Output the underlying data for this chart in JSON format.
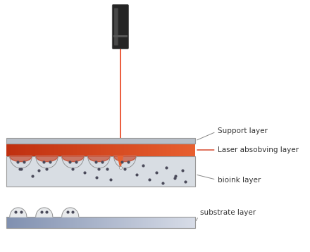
{
  "background_color": "#ffffff",
  "laser_beam_color": "#e8401a",
  "laser_body_dark": "#252525",
  "laser_body_mid": "#3a3a3a",
  "laser_ring_color": "#555555",
  "support_layer_color": "#b8bfc8",
  "support_layer_edge": "#999999",
  "absorbing_layer_left": "#c03010",
  "absorbing_layer_right": "#e86030",
  "bioink_layer_color": "#d8dde3",
  "bioink_layer_edge": "#999999",
  "substrate_color_left": "#8090b0",
  "substrate_color_right": "#d8dde8",
  "substrate_edge": "#999999",
  "droplet_fill": "#e8eaec",
  "droplet_edge": "#888888",
  "dot_color": "#4a4a5a",
  "label_color": "#333333",
  "label_fontsize": 7.5,
  "arrow_color": "#888888",
  "red_arrow_color": "#cc2200",
  "labels": {
    "support": "Support layer",
    "absorbing": "Laser absobving layer",
    "bioink": "bioink layer",
    "substrate": "substrate layer"
  },
  "fig_w": 4.4,
  "fig_h": 3.58,
  "dpi": 100
}
